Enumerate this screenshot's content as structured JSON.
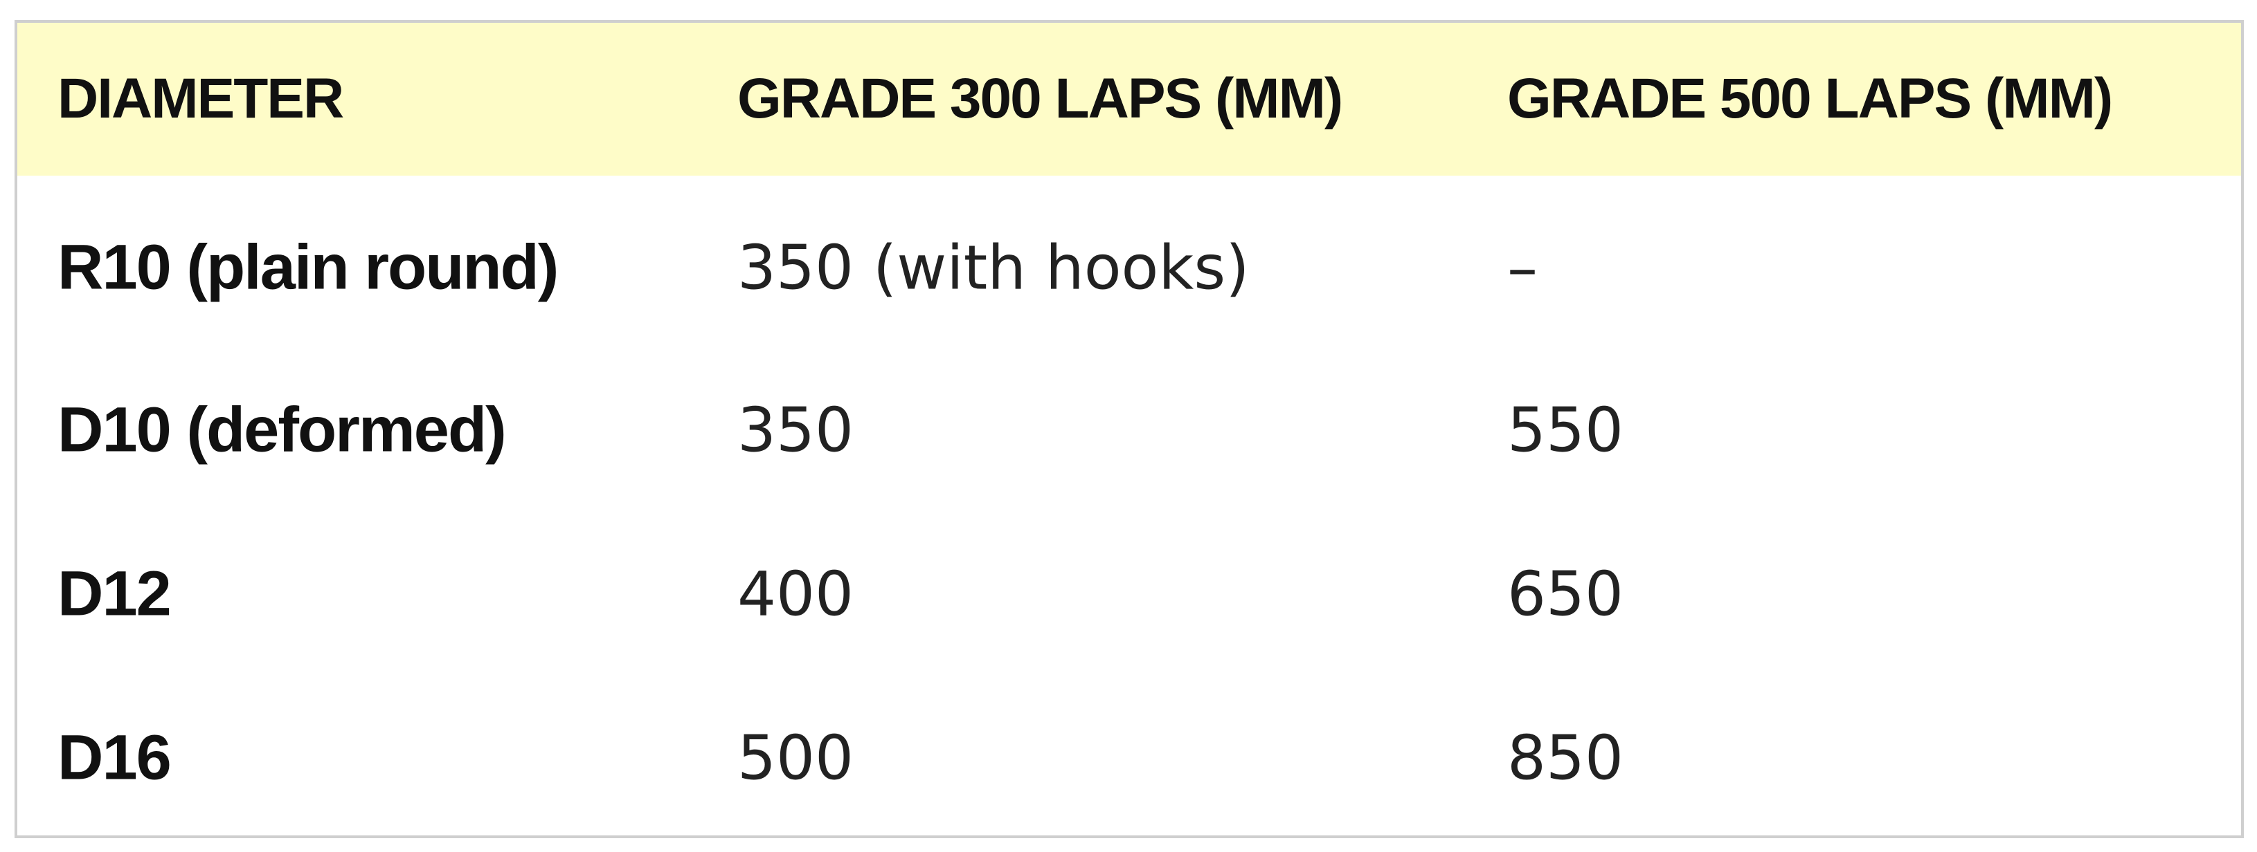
{
  "table": {
    "columns": [
      "DIAMETER",
      "GRADE 300 LAPS (MM)",
      "GRADE 500 LAPS (MM)"
    ],
    "rows": [
      [
        "R10 (plain round)",
        "350 (with hooks)",
        "–"
      ],
      [
        "D10 (deformed)",
        "350",
        "550"
      ],
      [
        "D12",
        "400",
        "650"
      ],
      [
        "D16",
        "500",
        "850"
      ]
    ]
  }
}
